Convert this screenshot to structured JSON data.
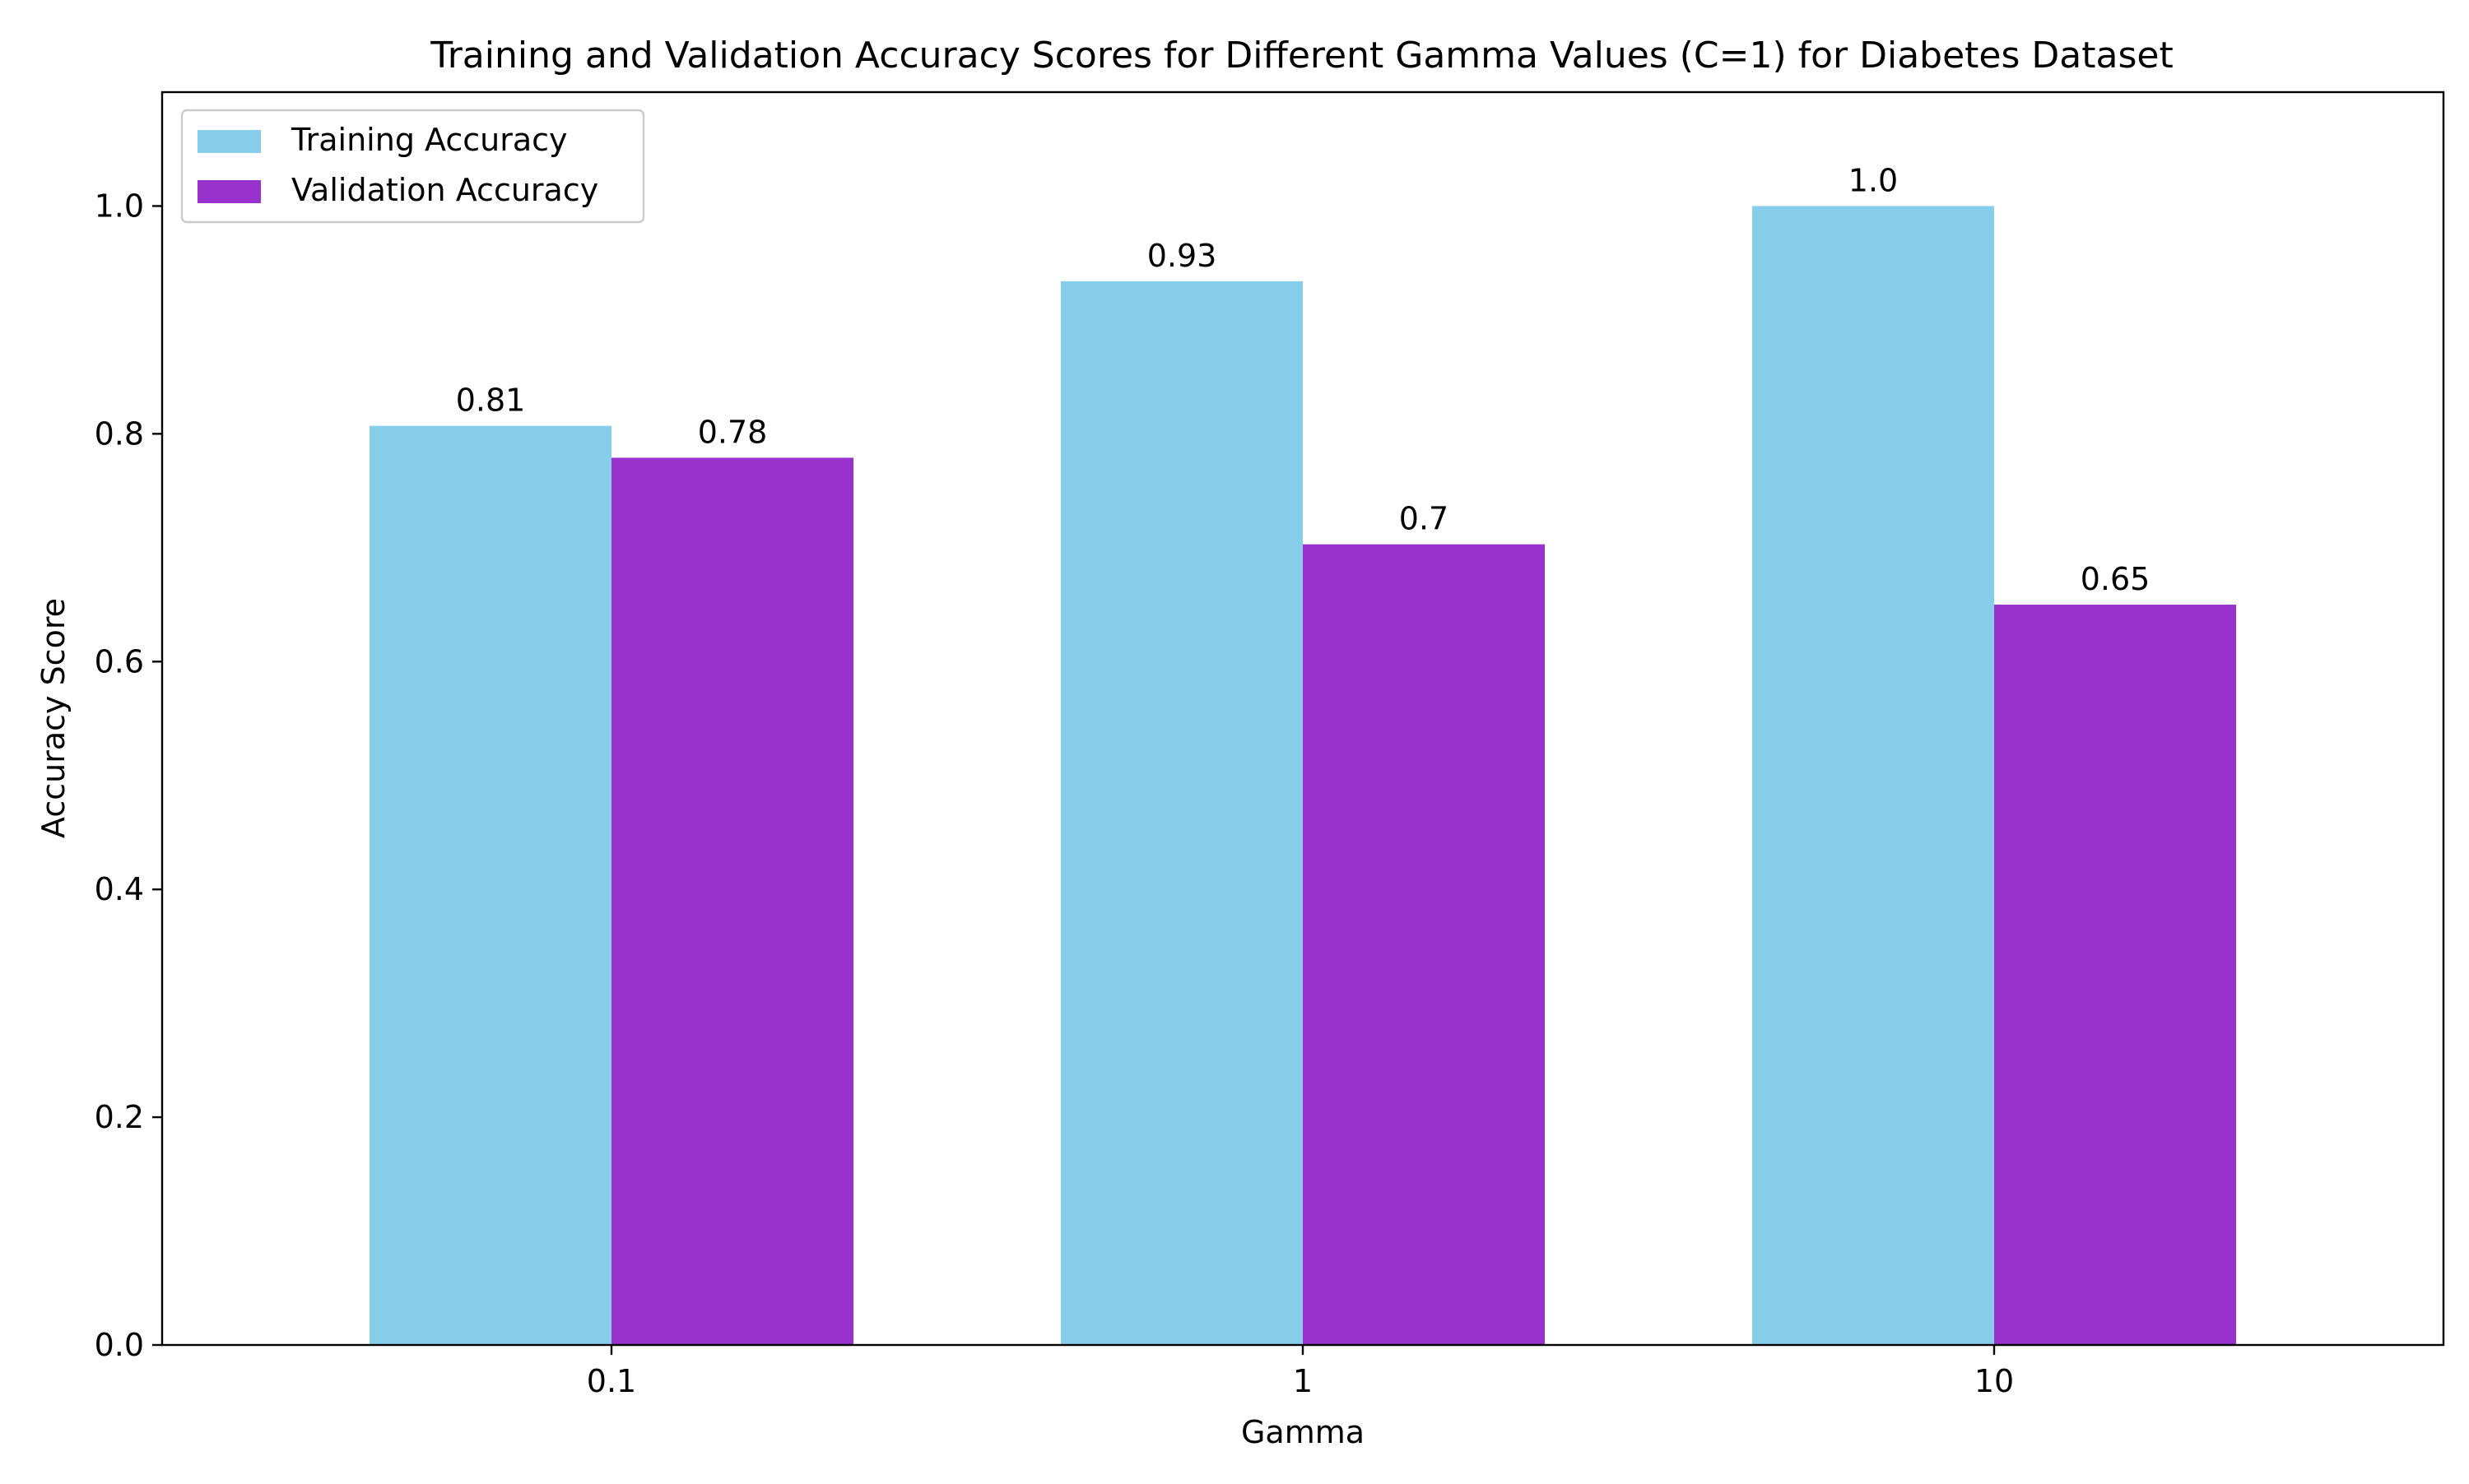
{
  "chart_data": {
    "type": "bar",
    "title": "Training and Validation Accuracy Scores for Different Gamma Values (C=1) for Diabetes Dataset",
    "xlabel": "Gamma",
    "ylabel": "Accuracy Score",
    "categories": [
      "0.1",
      "1",
      "10"
    ],
    "series": [
      {
        "name": "Training Accuracy",
        "color": "#87ceeb",
        "values": [
          0.807,
          0.934,
          1.0
        ],
        "labels": [
          "0.81",
          "0.93",
          "1.0"
        ]
      },
      {
        "name": "Validation Accuracy",
        "color": "#9932cc",
        "values": [
          0.779,
          0.703,
          0.65
        ],
        "labels": [
          "0.78",
          "0.7",
          "0.65"
        ]
      }
    ],
    "ylim": [
      0,
      1.1
    ],
    "yticks": [
      0.0,
      0.2,
      0.4,
      0.6,
      0.8,
      1.0
    ],
    "ytick_labels": [
      "0.0",
      "0.2",
      "0.4",
      "0.6",
      "0.8",
      "1.0"
    ],
    "grid": false,
    "legend_position": "top-left"
  }
}
